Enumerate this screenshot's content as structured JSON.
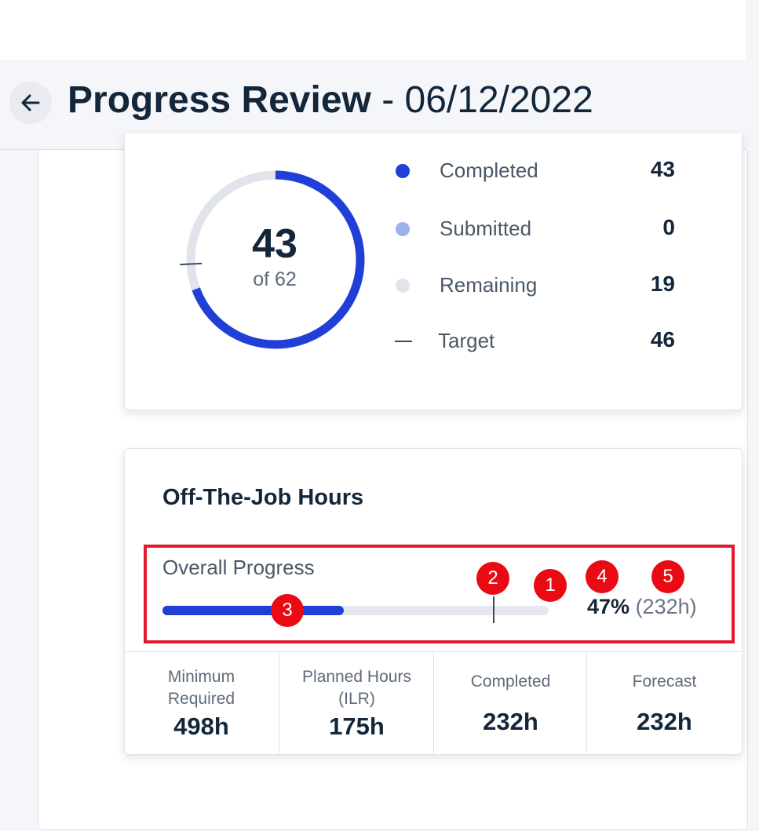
{
  "header": {
    "title": "Progress Review",
    "separator": "-",
    "date": "06/12/2022"
  },
  "icons": {
    "back": "arrow-left-icon"
  },
  "colors": {
    "completed": "#1f3fd6",
    "submitted": "#9fb0ee",
    "remaining": "#e1e4ea",
    "annotation": "#ea0a13"
  },
  "donut": {
    "value": "43",
    "subtitle": "of 62",
    "completed": 43,
    "total": 62,
    "target": 46
  },
  "legend": [
    {
      "label": "Completed",
      "value": "43",
      "marker": "dot",
      "color": "#1f3fd6"
    },
    {
      "label": "Submitted",
      "value": "0",
      "marker": "dot",
      "color": "#9fb0ee"
    },
    {
      "label": "Remaining",
      "value": "19",
      "marker": "dot",
      "color": "#e1e4ea"
    },
    {
      "label": "Target",
      "value": "46",
      "marker": "dash",
      "color": "#3a4a5c"
    }
  ],
  "otj": {
    "title": "Off-The-Job Hours",
    "progress_label": "Overall Progress",
    "percent_text": "47%",
    "hours_text": "(232h)",
    "progress_fraction": 0.47,
    "target_fraction": 0.858,
    "stats": [
      {
        "label": "Minimum Required",
        "value": "498h"
      },
      {
        "label": "Planned Hours (ILR)",
        "value": "175h"
      },
      {
        "label": "Completed",
        "value": "232h"
      },
      {
        "label": "Forecast",
        "value": "232h"
      }
    ]
  },
  "annotations": [
    "1",
    "2",
    "3",
    "4",
    "5"
  ]
}
